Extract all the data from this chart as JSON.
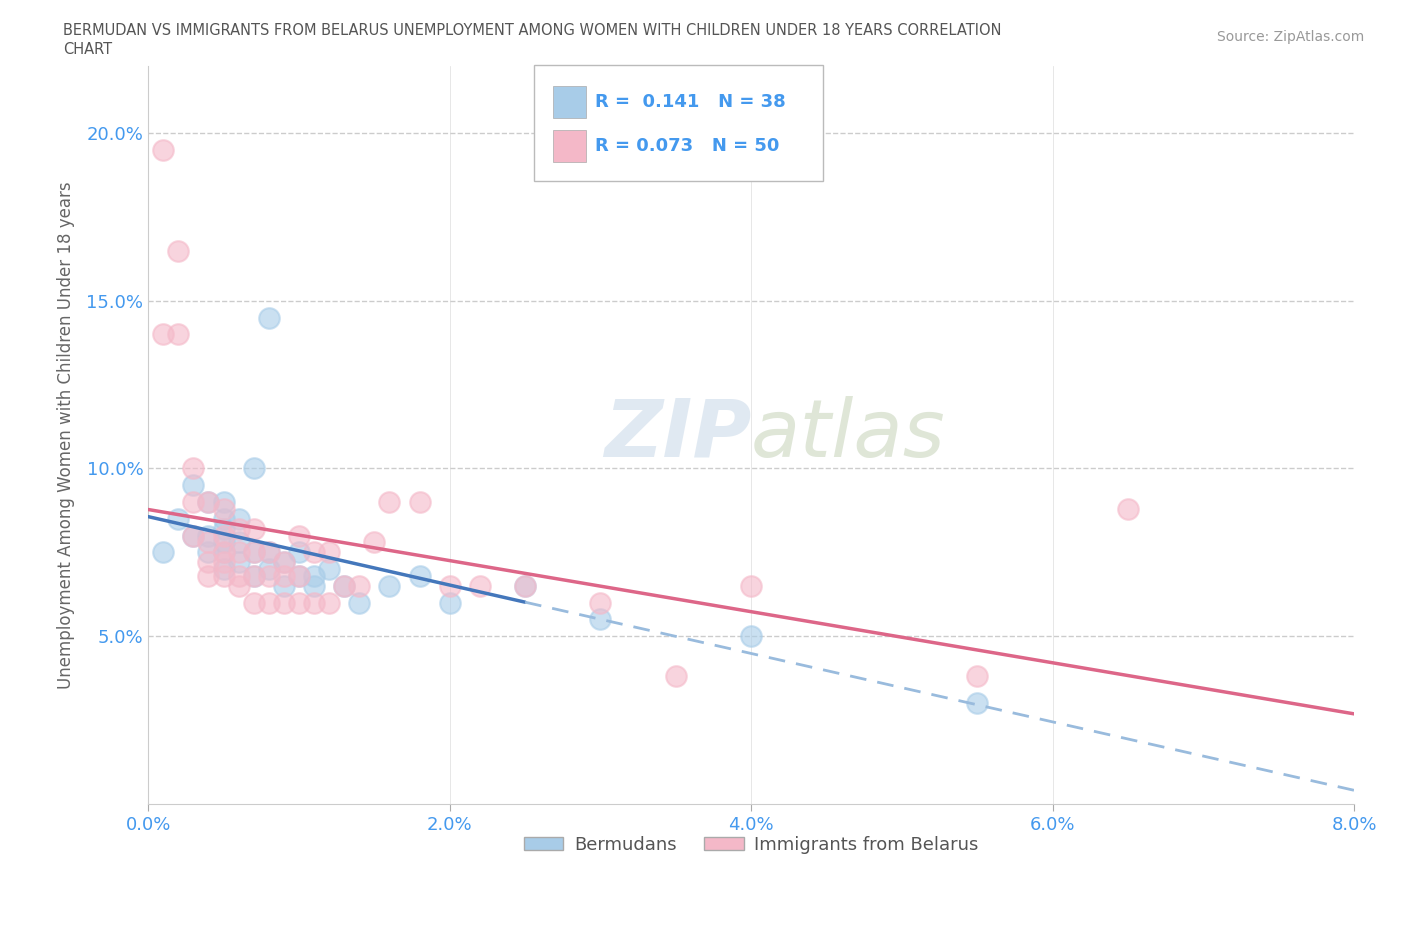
{
  "title_line1": "BERMUDAN VS IMMIGRANTS FROM BELARUS UNEMPLOYMENT AMONG WOMEN WITH CHILDREN UNDER 18 YEARS CORRELATION",
  "title_line2": "CHART",
  "source": "Source: ZipAtlas.com",
  "ylabel": "Unemployment Among Women with Children Under 18 years",
  "xlim": [
    0.0,
    0.08
  ],
  "ylim": [
    0.0,
    0.22
  ],
  "xticks": [
    0.0,
    0.02,
    0.04,
    0.06,
    0.08
  ],
  "xtick_labels": [
    "0.0%",
    "2.0%",
    "4.0%",
    "6.0%",
    "8.0%"
  ],
  "yticks": [
    0.05,
    0.1,
    0.15,
    0.2
  ],
  "ytick_labels": [
    "5.0%",
    "10.0%",
    "15.0%",
    "20.0%"
  ],
  "R_blue": 0.141,
  "N_blue": 38,
  "R_pink": 0.073,
  "N_pink": 50,
  "blue_scatter_color": "#a8cce8",
  "pink_scatter_color": "#f4b8c8",
  "blue_line_color": "#4477bb",
  "pink_line_color": "#dd6688",
  "blue_dashed_color": "#99bbdd",
  "legend1_label": "Bermudans",
  "legend2_label": "Immigrants from Belarus",
  "blue_x": [
    0.001,
    0.002,
    0.003,
    0.003,
    0.004,
    0.004,
    0.004,
    0.005,
    0.005,
    0.005,
    0.005,
    0.005,
    0.005,
    0.006,
    0.006,
    0.006,
    0.007,
    0.007,
    0.007,
    0.008,
    0.008,
    0.008,
    0.009,
    0.009,
    0.01,
    0.01,
    0.011,
    0.011,
    0.012,
    0.013,
    0.014,
    0.016,
    0.018,
    0.02,
    0.025,
    0.03,
    0.04,
    0.055
  ],
  "blue_y": [
    0.075,
    0.085,
    0.08,
    0.095,
    0.075,
    0.08,
    0.09,
    0.07,
    0.075,
    0.078,
    0.082,
    0.085,
    0.09,
    0.072,
    0.078,
    0.085,
    0.068,
    0.075,
    0.1,
    0.07,
    0.075,
    0.145,
    0.065,
    0.072,
    0.068,
    0.075,
    0.065,
    0.068,
    0.07,
    0.065,
    0.06,
    0.065,
    0.068,
    0.06,
    0.065,
    0.055,
    0.05,
    0.03
  ],
  "pink_x": [
    0.001,
    0.001,
    0.002,
    0.002,
    0.003,
    0.003,
    0.003,
    0.004,
    0.004,
    0.004,
    0.004,
    0.005,
    0.005,
    0.005,
    0.005,
    0.005,
    0.006,
    0.006,
    0.006,
    0.006,
    0.007,
    0.007,
    0.007,
    0.007,
    0.008,
    0.008,
    0.008,
    0.009,
    0.009,
    0.009,
    0.01,
    0.01,
    0.01,
    0.011,
    0.011,
    0.012,
    0.012,
    0.013,
    0.014,
    0.015,
    0.016,
    0.018,
    0.02,
    0.022,
    0.025,
    0.03,
    0.035,
    0.04,
    0.055,
    0.065
  ],
  "pink_y": [
    0.195,
    0.14,
    0.165,
    0.14,
    0.08,
    0.09,
    0.1,
    0.068,
    0.072,
    0.078,
    0.09,
    0.068,
    0.072,
    0.075,
    0.08,
    0.088,
    0.065,
    0.068,
    0.075,
    0.082,
    0.06,
    0.068,
    0.075,
    0.082,
    0.06,
    0.068,
    0.075,
    0.06,
    0.068,
    0.072,
    0.06,
    0.068,
    0.08,
    0.06,
    0.075,
    0.06,
    0.075,
    0.065,
    0.065,
    0.078,
    0.09,
    0.09,
    0.065,
    0.065,
    0.065,
    0.06,
    0.038,
    0.065,
    0.038,
    0.088
  ]
}
